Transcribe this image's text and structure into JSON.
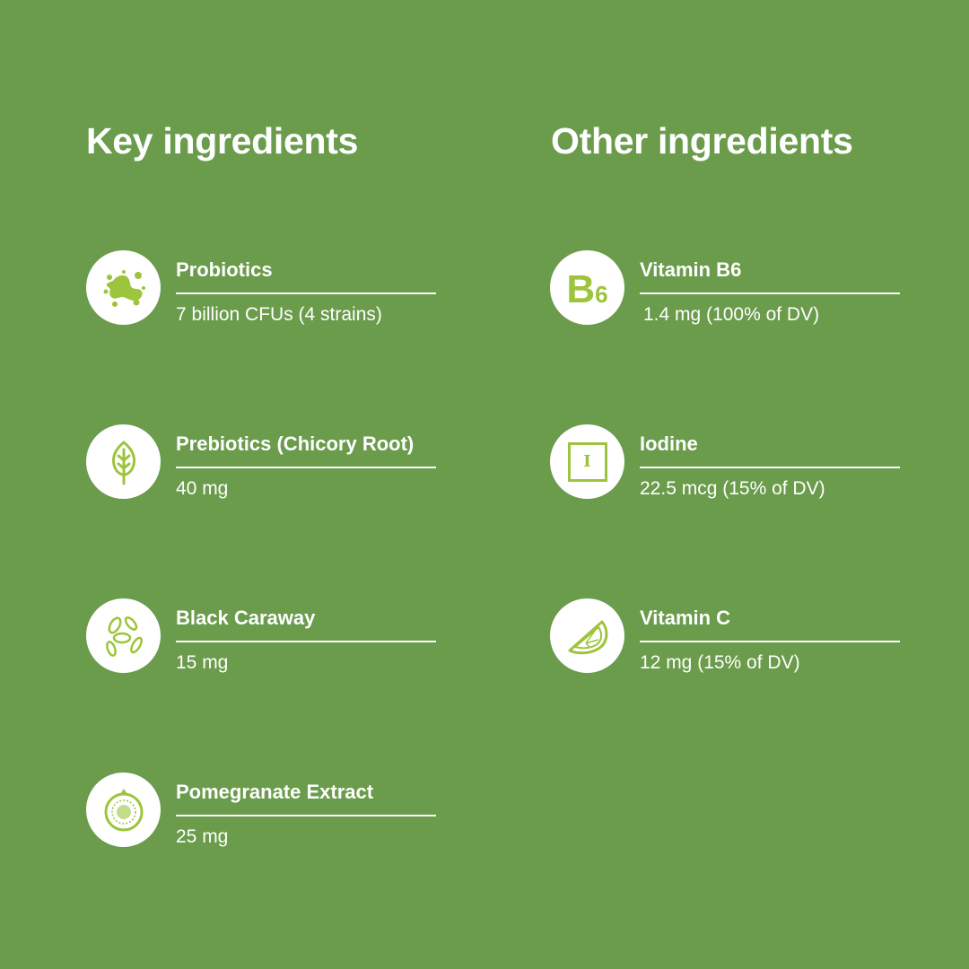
{
  "colors": {
    "background": "#6a9c4c",
    "icon": "#9dc43c",
    "circle": "#ffffff"
  },
  "key": {
    "title": "Key ingredients",
    "items": [
      {
        "name": "Probiotics",
        "value": "7 billion CFUs (4 strains)",
        "icon": "bacteria-icon"
      },
      {
        "name": "Prebiotics (Chicory Root)",
        "value": "40 mg",
        "icon": "leaf-icon"
      },
      {
        "name": "Black Caraway",
        "value": "15 mg",
        "icon": "seeds-icon"
      },
      {
        "name": "Pomegranate Extract",
        "value": "25 mg",
        "icon": "pomegranate-icon"
      }
    ]
  },
  "other": {
    "title": "Other ingredients",
    "items": [
      {
        "name": "Vitamin B6",
        "value": "1.4 mg (100% of DV)",
        "icon": "b6-icon",
        "glyph": "B",
        "glyph_sub": "6"
      },
      {
        "name": "Iodine",
        "value": "22.5 mcg (15% of DV)",
        "icon": "iodine-element-icon",
        "glyph": "I"
      },
      {
        "name": "Vitamin C",
        "value": "12 mg (15% of DV)",
        "icon": "lime-slice-icon"
      }
    ]
  }
}
